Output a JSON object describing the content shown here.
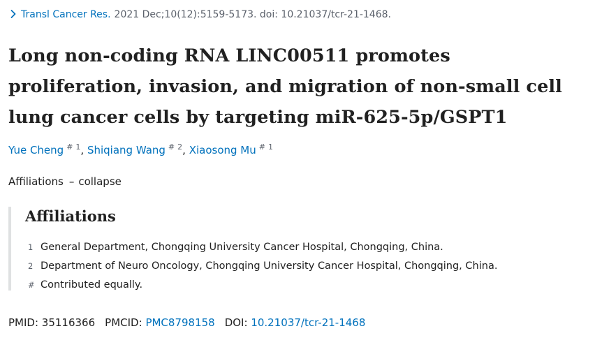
{
  "citation": {
    "journal": "Transl Cancer Res.",
    "details": "2021 Dec;10(12):5159-5173. doi: 10.21037/tcr-21-1468."
  },
  "article": {
    "title": "Long non-coding RNA LINC00511 promotes proliferation, invasion, and migration of non-small cell lung cancer cells by targeting miR-625-5p/GSPT1"
  },
  "authors": [
    {
      "name": "Yue Cheng",
      "marks": [
        "#",
        "1"
      ]
    },
    {
      "name": "Shiqiang Wang",
      "marks": [
        "#",
        "2"
      ]
    },
    {
      "name": "Xiaosong Mu",
      "marks": [
        "#",
        "1"
      ]
    }
  ],
  "affiliations_toggle": {
    "label": "Affiliations",
    "dash": "–",
    "action": "collapse"
  },
  "affiliations": {
    "heading": "Affiliations",
    "items": [
      {
        "key": "1",
        "text": "General Department, Chongqing University Cancer Hospital, Chongqing, China."
      },
      {
        "key": "2",
        "text": "Department of Neuro Oncology, Chongqing University Cancer Hospital, Chongqing, China."
      },
      {
        "key": "#",
        "text": "Contributed equally."
      }
    ]
  },
  "identifiers": {
    "pmid_label": "PMID:",
    "pmid": "35116366",
    "pmcid_label": "PMCID:",
    "pmcid": "PMC8798158",
    "doi_label": "DOI:",
    "doi": "10.21037/tcr-21-1468"
  },
  "colors": {
    "link": "#0071bc",
    "text": "#212121",
    "muted": "#5b616b",
    "rule": "#dfe1e2"
  },
  "icons": {
    "citation": "chevron-right-icon"
  }
}
